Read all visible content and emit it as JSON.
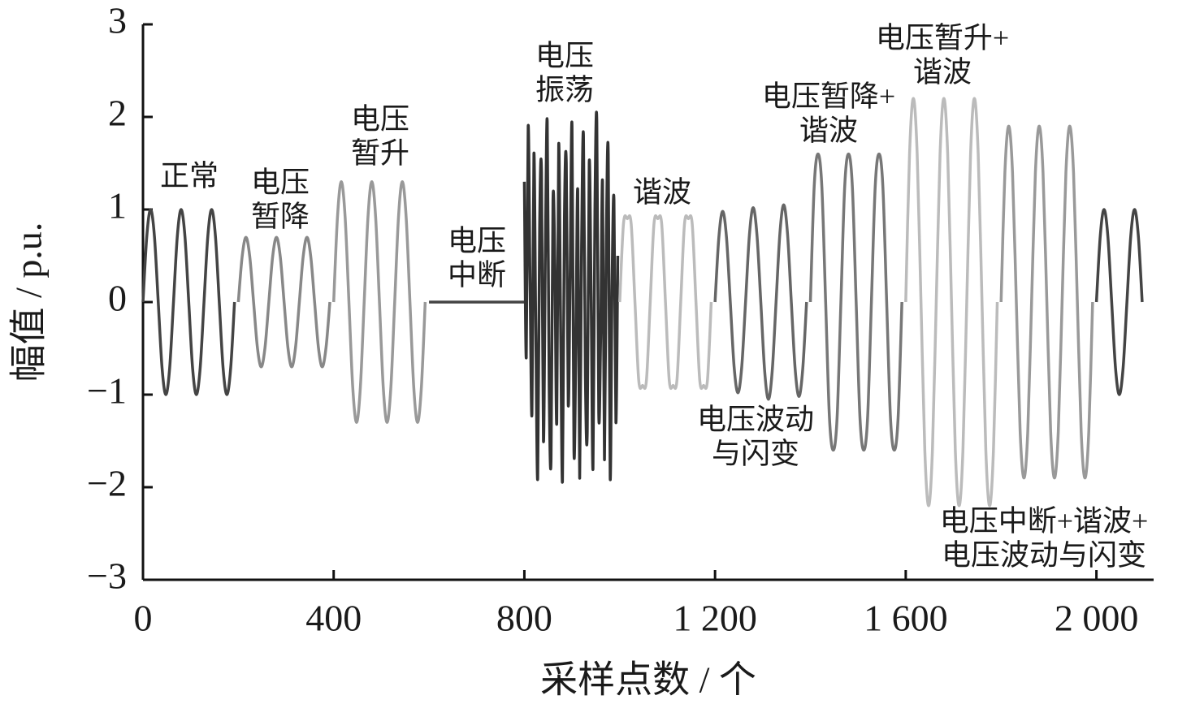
{
  "chart_data": {
    "type": "line",
    "xlabel": "采样点数 / 个",
    "ylabel": "幅值 / p.u.",
    "xlim": [
      0,
      2120
    ],
    "ylim": [
      -3,
      3
    ],
    "xticks": [
      0,
      400,
      800,
      {
        "value": 1200,
        "label": "1 200"
      },
      {
        "value": 1600,
        "label": "1 600"
      },
      {
        "value": 2000,
        "label": "2 000"
      }
    ],
    "yticks": [
      {
        "value": -3,
        "label": "−3"
      },
      {
        "value": -2,
        "label": "−2"
      },
      {
        "value": -1,
        "label": "−1"
      },
      0,
      1,
      2,
      3
    ],
    "annotations": [
      [
        "正常"
      ],
      [
        "电压",
        "暂降"
      ],
      [
        "电压",
        "暂升"
      ],
      [
        "电压",
        "中断"
      ],
      [
        "电压",
        "振荡"
      ],
      [
        "谐波"
      ],
      [
        "电压暂降+",
        "谐波"
      ],
      [
        "电压暂升+",
        "谐波"
      ],
      [
        "电压波动",
        "与闪变"
      ],
      [
        "电压中断+谐波+",
        "电压波动与闪变"
      ]
    ],
    "series": [
      {
        "color": "#444444",
        "x": [
          0,
          8,
          16,
          24,
          32,
          40,
          48,
          56,
          64,
          72,
          80,
          88,
          96,
          104,
          112,
          120,
          128,
          136,
          144,
          152,
          160,
          168,
          176,
          184,
          192
        ],
        "values": [
          0,
          0.71,
          1,
          0.71,
          0,
          -0.71,
          -1,
          -0.71,
          0,
          0.71,
          1,
          0.71,
          0,
          -0.71,
          -1,
          -0.71,
          0,
          0.71,
          1,
          0.71,
          0,
          -0.71,
          -1,
          -0.71,
          0
        ]
      },
      {
        "color": "#888888",
        "x": [
          200,
          208,
          216,
          224,
          232,
          240,
          248,
          256,
          264,
          272,
          280,
          288,
          296,
          304,
          312,
          320,
          328,
          336,
          344,
          352,
          360,
          368,
          376,
          384,
          392
        ],
        "values": [
          0,
          0.49,
          0.7,
          0.49,
          0,
          -0.49,
          -0.7,
          -0.49,
          0,
          0.49,
          0.7,
          0.49,
          0,
          -0.49,
          -0.7,
          -0.49,
          0,
          0.49,
          0.7,
          0.49,
          0,
          -0.49,
          -0.7,
          -0.49,
          0
        ]
      },
      {
        "color": "#999999",
        "x": [
          400,
          408,
          416,
          424,
          432,
          440,
          448,
          456,
          464,
          472,
          480,
          488,
          496,
          504,
          512,
          520,
          528,
          536,
          544,
          552,
          560,
          568,
          576,
          584,
          592
        ],
        "values": [
          0,
          0.92,
          1.3,
          0.92,
          0,
          -0.92,
          -1.3,
          -0.92,
          0,
          0.92,
          1.3,
          0.92,
          0,
          -0.92,
          -1.3,
          -0.92,
          0,
          0.92,
          1.3,
          0.92,
          0,
          -0.92,
          -1.3,
          -0.92,
          0
        ]
      },
      {
        "color": "#444444",
        "x": [
          600,
          800
        ],
        "values": [
          0,
          0
        ]
      },
      {
        "color": "#333333",
        "x": [
          800,
          804,
          808,
          812,
          816,
          820,
          824,
          828,
          832,
          836,
          840,
          844,
          848,
          852,
          856,
          860,
          864,
          868,
          872,
          876,
          880,
          884,
          888,
          892,
          896,
          900,
          904,
          908,
          912,
          916,
          920,
          924,
          928,
          932,
          936,
          940,
          944,
          948,
          952,
          956,
          960,
          964,
          968,
          972,
          976,
          980,
          984,
          988,
          992,
          996
        ],
        "values": [
          1.3,
          -0.6,
          1.9,
          0.2,
          -1.2,
          1.6,
          -0.3,
          -1.9,
          0.8,
          1.4,
          -1.5,
          0.5,
          1.95,
          -0.9,
          -1.7,
          1.1,
          0.4,
          -1.3,
          1.7,
          -0.2,
          -1.93,
          0.9,
          1.5,
          -1.1,
          0.3,
          1.9,
          -1.6,
          -0.5,
          1.2,
          -1.9,
          0.6,
          1.8,
          -0.8,
          -1.4,
          1.5,
          0.1,
          -1.8,
          1.0,
          1.95,
          -1.2,
          -0.4,
          1.3,
          -1.7,
          0.7,
          1.6,
          -1.9,
          0.2,
          1.1,
          -1.3,
          0.5
        ]
      },
      {
        "color": "#bbbbbb",
        "x": [
          1000,
          1008,
          1016,
          1024,
          1032,
          1040,
          1048,
          1056,
          1064,
          1072,
          1080,
          1088,
          1096,
          1104,
          1112,
          1120,
          1128,
          1136,
          1144,
          1152,
          1160,
          1168,
          1176,
          1184,
          1192
        ],
        "values": [
          0,
          0.85,
          0.9,
          0.85,
          0,
          -0.85,
          -0.9,
          -0.85,
          0,
          0.85,
          0.9,
          0.85,
          0,
          -0.85,
          -0.9,
          -0.85,
          0,
          0.85,
          0.9,
          0.85,
          0,
          -0.85,
          -0.9,
          -0.85,
          0
        ]
      },
      {
        "color": "#666666",
        "x": [
          1200,
          1208,
          1216,
          1224,
          1232,
          1240,
          1248,
          1256,
          1264,
          1272,
          1280,
          1288,
          1296,
          1304,
          1312,
          1320,
          1328,
          1336,
          1344,
          1352,
          1360,
          1368,
          1376,
          1384,
          1392
        ],
        "values": [
          0,
          0.7,
          0.98,
          0.7,
          0,
          -0.7,
          -0.98,
          -0.7,
          0,
          0.72,
          1.02,
          0.72,
          0,
          -0.74,
          -1.05,
          -0.74,
          0,
          0.74,
          1.05,
          0.74,
          0,
          -0.72,
          -1.02,
          -0.72,
          0
        ]
      },
      {
        "color": "#777777",
        "x": [
          1400,
          1408,
          1416,
          1424,
          1432,
          1440,
          1448,
          1456,
          1464,
          1472,
          1480,
          1488,
          1496,
          1504,
          1512,
          1520,
          1528,
          1536,
          1544,
          1552,
          1560,
          1568,
          1576,
          1584,
          1592
        ],
        "values": [
          0,
          1.25,
          1.6,
          1.25,
          0,
          -1.25,
          -1.6,
          -1.25,
          0,
          1.25,
          1.6,
          1.25,
          0,
          -1.25,
          -1.6,
          -1.25,
          0,
          1.25,
          1.6,
          1.25,
          0,
          -1.25,
          -1.6,
          -1.25,
          0
        ]
      },
      {
        "color": "#bbbbbb",
        "x": [
          1600,
          1608,
          1616,
          1624,
          1632,
          1640,
          1648,
          1656,
          1664,
          1672,
          1680,
          1688,
          1696,
          1704,
          1712,
          1720,
          1728,
          1736,
          1744,
          1752,
          1760,
          1768,
          1776,
          1784,
          1792
        ],
        "values": [
          0,
          1.6,
          2.2,
          1.6,
          0,
          -1.6,
          -2.2,
          -1.6,
          0,
          1.6,
          2.2,
          1.6,
          0,
          -1.6,
          -2.2,
          -1.6,
          0,
          1.6,
          2.2,
          1.6,
          0,
          -1.6,
          -2.2,
          -1.6,
          0
        ]
      },
      {
        "color": "#999999",
        "x": [
          1800,
          1808,
          1816,
          1824,
          1832,
          1840,
          1848,
          1856,
          1864,
          1872,
          1880,
          1888,
          1896,
          1904,
          1912,
          1920,
          1928,
          1936,
          1944,
          1952,
          1960,
          1968,
          1976,
          1984,
          1992
        ],
        "values": [
          0,
          1.4,
          1.9,
          1.4,
          0,
          -1.4,
          -1.9,
          -1.4,
          0,
          1.4,
          1.9,
          1.4,
          0,
          -1.4,
          -1.9,
          -1.4,
          0,
          1.4,
          1.9,
          1.4,
          0,
          -1.4,
          -1.9,
          -1.4,
          0
        ]
      },
      {
        "color": "#444444",
        "x": [
          2000,
          2008,
          2016,
          2024,
          2032,
          2040,
          2048,
          2056,
          2064,
          2072,
          2080,
          2088,
          2096
        ],
        "values": [
          0,
          0.71,
          1,
          0.71,
          0,
          -0.71,
          -1,
          -0.71,
          0,
          0.71,
          1,
          0.71,
          0
        ]
      }
    ]
  }
}
